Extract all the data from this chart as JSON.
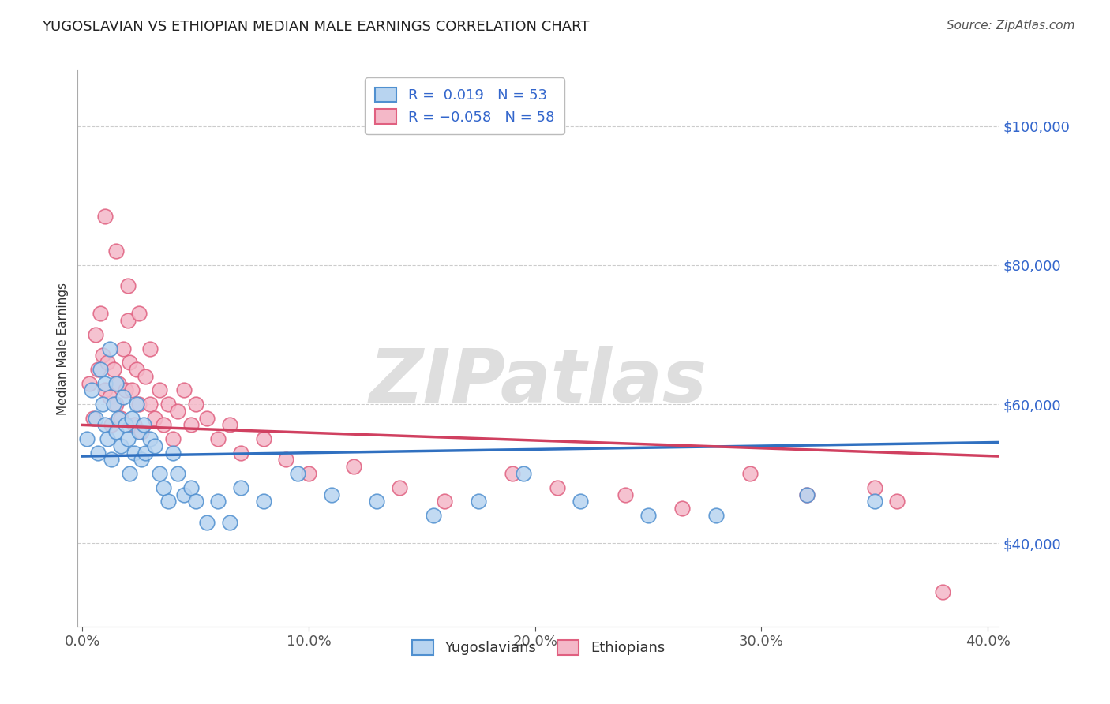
{
  "title": "YUGOSLAVIAN VS ETHIOPIAN MEDIAN MALE EARNINGS CORRELATION CHART",
  "source": "Source: ZipAtlas.com",
  "ylabel": "Median Male Earnings",
  "watermark": "ZIPatlas",
  "legend_r_yug": "R =  0.019",
  "legend_n_yug": "N = 53",
  "legend_r_eth": "R = -0.058",
  "legend_n_eth": "N = 58",
  "yug_fill_color": "#b8d4f0",
  "eth_fill_color": "#f4b8c8",
  "yug_edge_color": "#5090d0",
  "eth_edge_color": "#e06080",
  "yug_line_color": "#3070c0",
  "eth_line_color": "#d04060",
  "title_color": "#222222",
  "tick_color": "#3366cc",
  "ylabel_color": "#333333",
  "grid_color": "#cccccc",
  "xlim_min": -0.002,
  "xlim_max": 0.405,
  "ylim_min": 28000,
  "ylim_max": 108000,
  "yticks": [
    40000,
    60000,
    80000,
    100000
  ],
  "ytick_labels": [
    "$40,000",
    "$60,000",
    "$80,000",
    "$100,000"
  ],
  "xticks": [
    0.0,
    0.1,
    0.2,
    0.3,
    0.4
  ],
  "xtick_labels": [
    "0.0%",
    "10.0%",
    "20.0%",
    "30.0%",
    "40.0%"
  ],
  "yug_x": [
    0.002,
    0.004,
    0.006,
    0.007,
    0.008,
    0.009,
    0.01,
    0.01,
    0.011,
    0.012,
    0.013,
    0.014,
    0.015,
    0.015,
    0.016,
    0.017,
    0.018,
    0.019,
    0.02,
    0.021,
    0.022,
    0.023,
    0.024,
    0.025,
    0.026,
    0.027,
    0.028,
    0.03,
    0.032,
    0.034,
    0.036,
    0.038,
    0.04,
    0.042,
    0.045,
    0.048,
    0.05,
    0.055,
    0.06,
    0.065,
    0.07,
    0.08,
    0.095,
    0.11,
    0.13,
    0.155,
    0.175,
    0.195,
    0.22,
    0.25,
    0.28,
    0.32,
    0.35
  ],
  "yug_y": [
    55000,
    62000,
    58000,
    53000,
    65000,
    60000,
    57000,
    63000,
    55000,
    68000,
    52000,
    60000,
    56000,
    63000,
    58000,
    54000,
    61000,
    57000,
    55000,
    50000,
    58000,
    53000,
    60000,
    56000,
    52000,
    57000,
    53000,
    55000,
    54000,
    50000,
    48000,
    46000,
    53000,
    50000,
    47000,
    48000,
    46000,
    43000,
    46000,
    43000,
    48000,
    46000,
    50000,
    47000,
    46000,
    44000,
    46000,
    50000,
    46000,
    44000,
    44000,
    47000,
    46000
  ],
  "eth_x": [
    0.003,
    0.005,
    0.006,
    0.007,
    0.008,
    0.009,
    0.01,
    0.011,
    0.012,
    0.013,
    0.014,
    0.015,
    0.016,
    0.017,
    0.018,
    0.019,
    0.02,
    0.021,
    0.022,
    0.023,
    0.024,
    0.025,
    0.026,
    0.028,
    0.03,
    0.032,
    0.034,
    0.036,
    0.038,
    0.04,
    0.042,
    0.045,
    0.048,
    0.05,
    0.055,
    0.06,
    0.065,
    0.07,
    0.08,
    0.09,
    0.1,
    0.12,
    0.14,
    0.16,
    0.19,
    0.21,
    0.24,
    0.265,
    0.295,
    0.32,
    0.35,
    0.36,
    0.38,
    0.01,
    0.015,
    0.02,
    0.025,
    0.03
  ],
  "eth_y": [
    63000,
    58000,
    70000,
    65000,
    73000,
    67000,
    62000,
    66000,
    61000,
    57000,
    65000,
    60000,
    63000,
    58000,
    68000,
    62000,
    72000,
    66000,
    62000,
    57000,
    65000,
    60000,
    56000,
    64000,
    60000,
    58000,
    62000,
    57000,
    60000,
    55000,
    59000,
    62000,
    57000,
    60000,
    58000,
    55000,
    57000,
    53000,
    55000,
    52000,
    50000,
    51000,
    48000,
    46000,
    50000,
    48000,
    47000,
    45000,
    50000,
    47000,
    48000,
    46000,
    33000,
    87000,
    82000,
    77000,
    73000,
    68000
  ],
  "yug_trend_x0": 0.0,
  "yug_trend_y0": 52500,
  "yug_trend_x1": 0.405,
  "yug_trend_y1": 54500,
  "eth_trend_x0": 0.0,
  "eth_trend_y0": 57000,
  "eth_trend_x1": 0.405,
  "eth_trend_y1": 52500
}
